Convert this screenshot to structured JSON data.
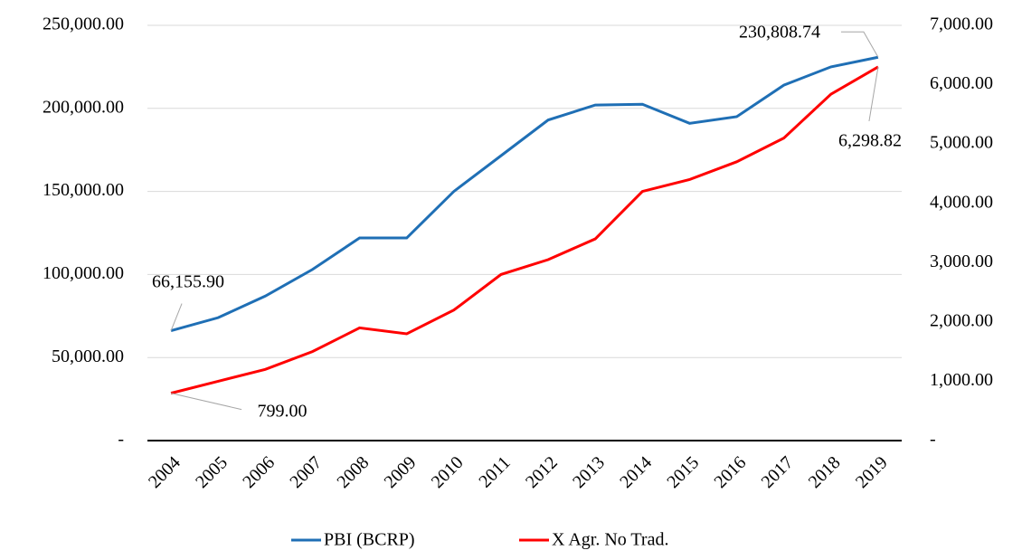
{
  "chart_data": {
    "type": "line",
    "categories": [
      "2004",
      "2005",
      "2006",
      "2007",
      "2008",
      "2009",
      "2010",
      "2011",
      "2012",
      "2013",
      "2014",
      "2015",
      "2016",
      "2017",
      "2018",
      "2019"
    ],
    "series": [
      {
        "name": "PBI (BCRP)",
        "color": "#1f6fb5",
        "axis": "y",
        "values": [
          66155.9,
          74000,
          87000,
          103000,
          122000,
          122000,
          150000,
          171500,
          193000,
          202000,
          202500,
          191000,
          195000,
          214000,
          225000,
          230808.74
        ],
        "value_labels": [
          "66,155.90",
          null,
          null,
          null,
          null,
          null,
          null,
          null,
          null,
          null,
          null,
          null,
          null,
          null,
          null,
          "230,808.74"
        ]
      },
      {
        "name": "X Agr. No Trad.",
        "color": "#ff0000",
        "axis": "y2",
        "values": [
          799.0,
          1000,
          1200,
          1500,
          1900,
          1800,
          2200,
          2800,
          3050,
          3400,
          4200,
          4400,
          4700,
          5100,
          5840,
          6298.82
        ],
        "value_labels": [
          "799.00",
          null,
          null,
          null,
          null,
          null,
          null,
          null,
          null,
          null,
          null,
          null,
          null,
          null,
          null,
          "6,298.82"
        ]
      }
    ],
    "ylim": [
      0,
      250000
    ],
    "yticks": [
      {
        "value": 0,
        "label": "-"
      },
      {
        "value": 50000,
        "label": "50,000.00"
      },
      {
        "value": 100000,
        "label": "100,000.00"
      },
      {
        "value": 150000,
        "label": "150,000.00"
      },
      {
        "value": 200000,
        "label": "200,000.00"
      },
      {
        "value": 250000,
        "label": "250,000.00"
      }
    ],
    "y2lim": [
      0,
      7000
    ],
    "y2ticks": [
      {
        "value": 0,
        "label": "-"
      },
      {
        "value": 1000,
        "label": "1,000.00"
      },
      {
        "value": 2000,
        "label": "2,000.00"
      },
      {
        "value": 3000,
        "label": "3,000.00"
      },
      {
        "value": 4000,
        "label": "4,000.00"
      },
      {
        "value": 5000,
        "label": "5,000.00"
      },
      {
        "value": 6000,
        "label": "6,000.00"
      },
      {
        "value": 7000,
        "label": "7,000.00"
      }
    ],
    "grid": true,
    "legend": "bottom"
  }
}
